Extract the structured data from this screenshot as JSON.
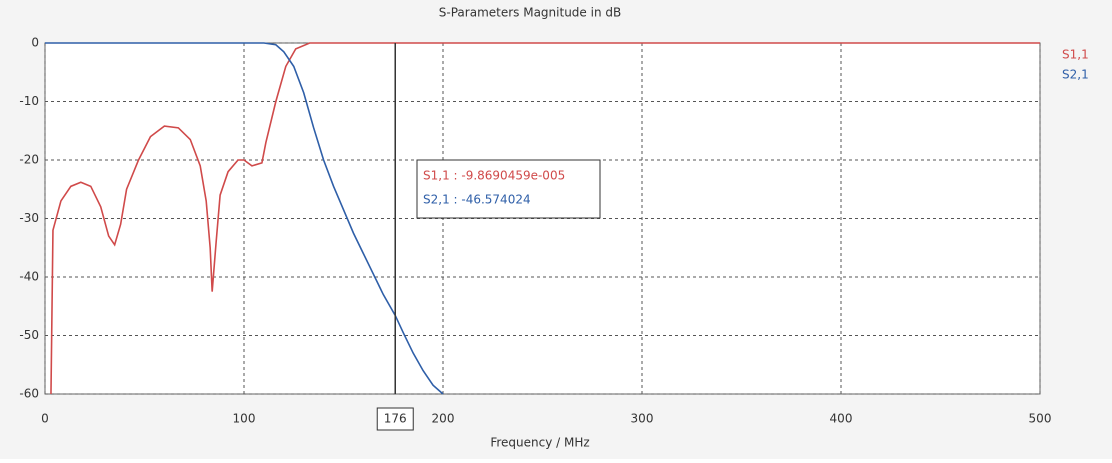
{
  "chart_data": {
    "type": "line",
    "title": "S-Parameters Magnitude in dB",
    "xlabel": "Frequency / MHz",
    "xlim": [
      0,
      500
    ],
    "ylim": [
      -60,
      0
    ],
    "xticks": [
      0,
      100,
      200,
      300,
      400,
      500
    ],
    "yticks": [
      0,
      -10,
      -20,
      -30,
      -40,
      -50,
      -60
    ],
    "grid": true,
    "legend": "right",
    "series": [
      {
        "name": "S1,1",
        "color": "#d04a4a",
        "x": [
          3,
          4,
          8,
          13,
          18,
          23,
          28,
          32,
          35,
          38,
          41,
          47,
          53,
          60,
          67,
          73,
          78,
          81,
          83,
          84,
          86,
          88,
          92,
          97,
          100,
          104,
          109,
          111,
          116,
          121,
          126,
          133,
          500
        ],
        "values": [
          -60,
          -32,
          -27,
          -24.5,
          -23.8,
          -24.5,
          -28,
          -33,
          -34.5,
          -31,
          -25,
          -20,
          -16,
          -14.2,
          -14.5,
          -16.5,
          -21,
          -27,
          -35,
          -42.5,
          -34,
          -26,
          -22,
          -20,
          -20,
          -21,
          -20.5,
          -17,
          -10,
          -4,
          -1,
          0,
          0
        ]
      },
      {
        "name": "S2,1",
        "color": "#2f5fa8",
        "x": [
          0,
          110,
          116,
          120,
          125,
          130,
          135,
          140,
          145,
          150,
          155,
          160,
          165,
          170,
          176,
          180,
          185,
          190,
          195,
          200
        ],
        "values": [
          0,
          0,
          -0.3,
          -1.5,
          -4,
          -8.5,
          -14.5,
          -20,
          -24.5,
          -28.5,
          -32.5,
          -36,
          -39.5,
          -43,
          -46.574024,
          -49.5,
          -53,
          -56,
          -58.5,
          -60
        ]
      }
    ],
    "cursor": {
      "value": 176,
      "color": "#333333"
    },
    "annotations": [
      "S1,1 : -9.8690459e-005",
      "S2,1 : -46.574024"
    ]
  }
}
